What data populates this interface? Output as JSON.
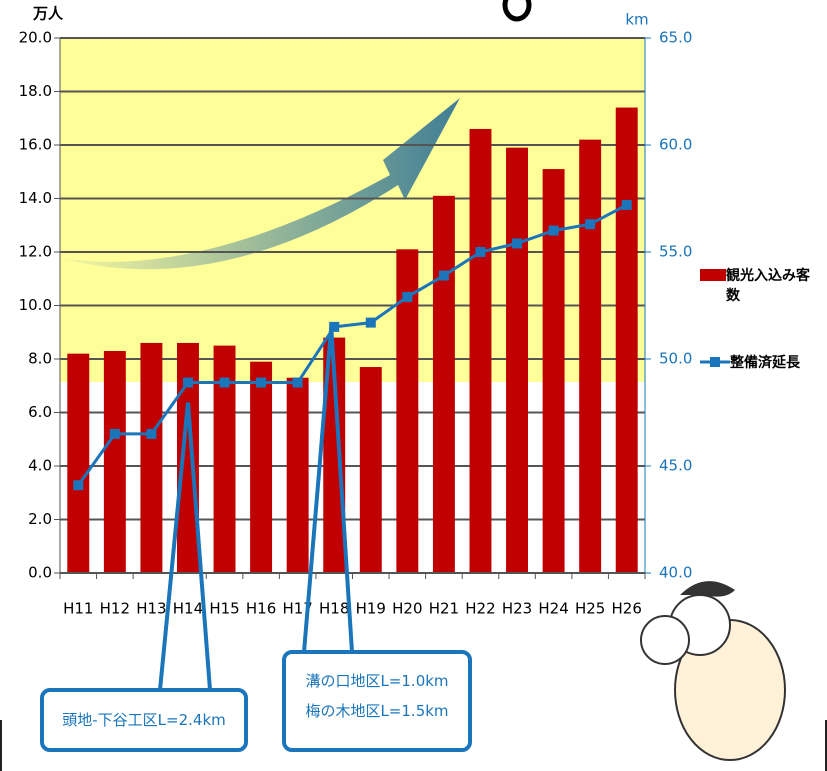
{
  "chart_data": {
    "type": "bar",
    "categories": [
      "H11",
      "H12",
      "H13",
      "H14",
      "H15",
      "H16",
      "H17",
      "H18",
      "H19",
      "H20",
      "H21",
      "H22",
      "H23",
      "H24",
      "H25",
      "H26"
    ],
    "y_unit": "万人",
    "y2_unit": "km",
    "series": [
      {
        "name": "観光入込み客数",
        "color": "#c00000",
        "type": "bar",
        "values": [
          8.2,
          8.3,
          8.6,
          8.6,
          8.5,
          7.9,
          7.3,
          8.8,
          7.7,
          12.1,
          14.1,
          16.6,
          15.9,
          15.1,
          16.2,
          17.4
        ]
      },
      {
        "name": "整備済延長",
        "color": "#1a75bb",
        "type": "line",
        "axis": "y2",
        "values": [
          44.1,
          46.5,
          46.5,
          48.9,
          48.9,
          48.9,
          48.9,
          51.5,
          51.7,
          52.9,
          53.9,
          55.0,
          55.4,
          56.0,
          56.3,
          57.2
        ]
      }
    ],
    "ylim": [
      0,
      20
    ],
    "yticks": [
      {
        "value": 0,
        "label": "0.0"
      },
      {
        "value": 2,
        "label": "2.0"
      },
      {
        "value": 4,
        "label": "4.0"
      },
      {
        "value": 6,
        "label": "6.0"
      },
      {
        "value": 8,
        "label": "8.0"
      },
      {
        "value": 10,
        "label": "10.0"
      },
      {
        "value": 12,
        "label": "12.0"
      },
      {
        "value": 14,
        "label": "14.0"
      },
      {
        "value": 16,
        "label": "16.0"
      },
      {
        "value": 18,
        "label": "18.0"
      },
      {
        "value": 20,
        "label": "20.0"
      }
    ],
    "y2lim": [
      40,
      65
    ],
    "y2ticks": [
      {
        "value": 40,
        "label": "40.0"
      },
      {
        "value": 45,
        "label": "45.0"
      },
      {
        "value": 50,
        "label": "50.0"
      },
      {
        "value": 55,
        "label": "55.0"
      },
      {
        "value": 60,
        "label": "60.0"
      },
      {
        "value": 65,
        "label": "65.0"
      }
    ],
    "grid": true,
    "annotations": [
      "頭地-下谷工区L=2.4km",
      "溝の口地区L=1.0km",
      "梅の木地区L=1.5km"
    ]
  }
}
